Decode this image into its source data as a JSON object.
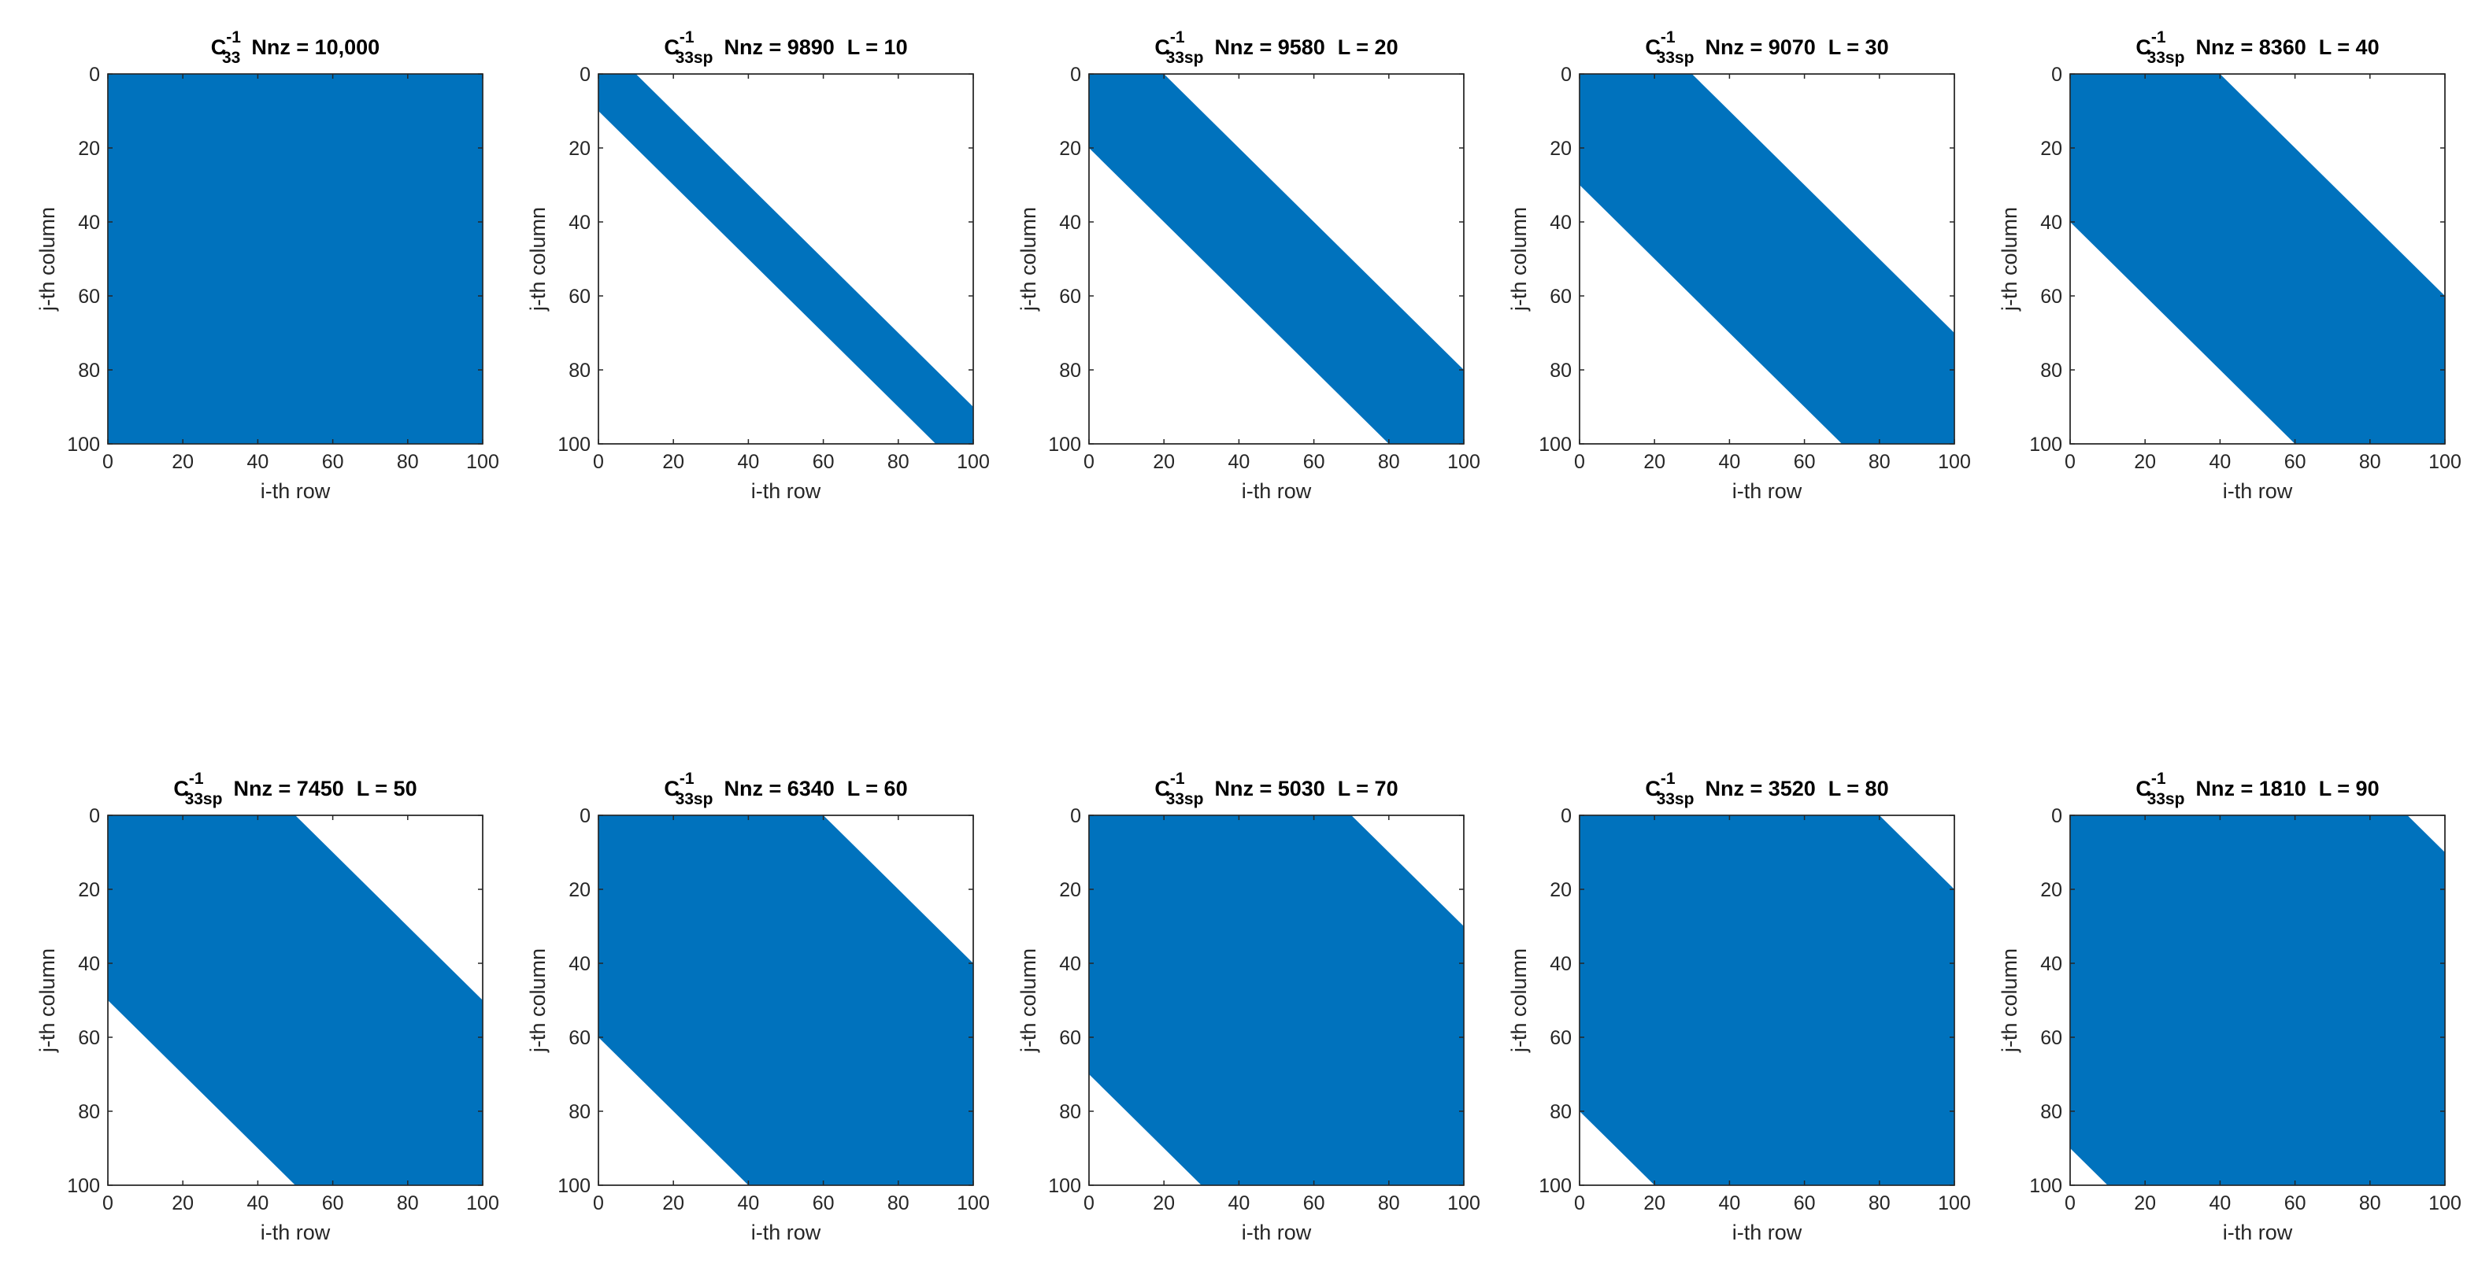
{
  "chart_data": [
    {
      "type": "spy",
      "title_base": "C",
      "title_super": "-1",
      "title_sub": "33",
      "nnz_text": "Nnz = 10,000",
      "l_text": "",
      "bandwidth": null,
      "nnz": 10000,
      "xlabel": "i-th row",
      "ylabel": "j-th column",
      "xlim": [
        0,
        100
      ],
      "ylim": [
        0,
        100
      ],
      "xticks": [
        "0",
        "20",
        "40",
        "60",
        "80",
        "100"
      ],
      "yticks": [
        "0",
        "20",
        "40",
        "60",
        "80",
        "100"
      ],
      "color": "#0072BD"
    },
    {
      "type": "spy",
      "title_base": "C",
      "title_super": "-1",
      "title_sub": "33sp",
      "nnz_text": "Nnz = 9890",
      "l_text": "L = 10",
      "bandwidth": 10,
      "nnz": 9890,
      "xlabel": "i-th row",
      "ylabel": "j-th column",
      "xlim": [
        0,
        100
      ],
      "ylim": [
        0,
        100
      ],
      "xticks": [
        "0",
        "20",
        "40",
        "60",
        "80",
        "100"
      ],
      "yticks": [
        "0",
        "20",
        "40",
        "60",
        "80",
        "100"
      ],
      "color": "#0072BD"
    },
    {
      "type": "spy",
      "title_base": "C",
      "title_super": "-1",
      "title_sub": "33sp",
      "nnz_text": "Nnz = 9580",
      "l_text": "L = 20",
      "bandwidth": 20,
      "nnz": 9580,
      "xlabel": "i-th row",
      "ylabel": "j-th column",
      "xlim": [
        0,
        100
      ],
      "ylim": [
        0,
        100
      ],
      "xticks": [
        "0",
        "20",
        "40",
        "60",
        "80",
        "100"
      ],
      "yticks": [
        "0",
        "20",
        "40",
        "60",
        "80",
        "100"
      ],
      "color": "#0072BD"
    },
    {
      "type": "spy",
      "title_base": "C",
      "title_super": "-1",
      "title_sub": "33sp",
      "nnz_text": "Nnz = 9070",
      "l_text": "L = 30",
      "bandwidth": 30,
      "nnz": 9070,
      "xlabel": "i-th row",
      "ylabel": "j-th column",
      "xlim": [
        0,
        100
      ],
      "ylim": [
        0,
        100
      ],
      "xticks": [
        "0",
        "20",
        "40",
        "60",
        "80",
        "100"
      ],
      "yticks": [
        "0",
        "20",
        "40",
        "60",
        "80",
        "100"
      ],
      "color": "#0072BD"
    },
    {
      "type": "spy",
      "title_base": "C",
      "title_super": "-1",
      "title_sub": "33sp",
      "nnz_text": "Nnz = 8360",
      "l_text": "L = 40",
      "bandwidth": 40,
      "nnz": 8360,
      "xlabel": "i-th row",
      "ylabel": "j-th column",
      "xlim": [
        0,
        100
      ],
      "ylim": [
        0,
        100
      ],
      "xticks": [
        "0",
        "20",
        "40",
        "60",
        "80",
        "100"
      ],
      "yticks": [
        "0",
        "20",
        "40",
        "60",
        "80",
        "100"
      ],
      "color": "#0072BD"
    },
    {
      "type": "spy",
      "title_base": "C",
      "title_super": "-1",
      "title_sub": "33sp",
      "nnz_text": "Nnz = 7450",
      "l_text": "L = 50",
      "bandwidth": 50,
      "nnz": 7450,
      "xlabel": "i-th row",
      "ylabel": "j-th column",
      "xlim": [
        0,
        100
      ],
      "ylim": [
        0,
        100
      ],
      "xticks": [
        "0",
        "20",
        "40",
        "60",
        "80",
        "100"
      ],
      "yticks": [
        "0",
        "20",
        "40",
        "60",
        "80",
        "100"
      ],
      "color": "#0072BD"
    },
    {
      "type": "spy",
      "title_base": "C",
      "title_super": "-1",
      "title_sub": "33sp",
      "nnz_text": "Nnz = 6340",
      "l_text": "L = 60",
      "bandwidth": 60,
      "nnz": 6340,
      "xlabel": "i-th row",
      "ylabel": "j-th column",
      "xlim": [
        0,
        100
      ],
      "ylim": [
        0,
        100
      ],
      "xticks": [
        "0",
        "20",
        "40",
        "60",
        "80",
        "100"
      ],
      "yticks": [
        "0",
        "20",
        "40",
        "60",
        "80",
        "100"
      ],
      "color": "#0072BD"
    },
    {
      "type": "spy",
      "title_base": "C",
      "title_super": "-1",
      "title_sub": "33sp",
      "nnz_text": "Nnz = 5030",
      "l_text": "L = 70",
      "bandwidth": 70,
      "nnz": 5030,
      "xlabel": "i-th row",
      "ylabel": "j-th column",
      "xlim": [
        0,
        100
      ],
      "ylim": [
        0,
        100
      ],
      "xticks": [
        "0",
        "20",
        "40",
        "60",
        "80",
        "100"
      ],
      "yticks": [
        "0",
        "20",
        "40",
        "60",
        "80",
        "100"
      ],
      "color": "#0072BD"
    },
    {
      "type": "spy",
      "title_base": "C",
      "title_super": "-1",
      "title_sub": "33sp",
      "nnz_text": "Nnz = 3520",
      "l_text": "L = 80",
      "bandwidth": 80,
      "nnz": 3520,
      "xlabel": "i-th row",
      "ylabel": "j-th column",
      "xlim": [
        0,
        100
      ],
      "ylim": [
        0,
        100
      ],
      "xticks": [
        "0",
        "20",
        "40",
        "60",
        "80",
        "100"
      ],
      "yticks": [
        "0",
        "20",
        "40",
        "60",
        "80",
        "100"
      ],
      "color": "#0072BD"
    },
    {
      "type": "spy",
      "title_base": "C",
      "title_super": "-1",
      "title_sub": "33sp",
      "nnz_text": "Nnz = 1810",
      "l_text": "L = 90",
      "bandwidth": 90,
      "nnz": 1810,
      "xlabel": "i-th row",
      "ylabel": "j-th column",
      "xlim": [
        0,
        100
      ],
      "ylim": [
        0,
        100
      ],
      "xticks": [
        "0",
        "20",
        "40",
        "60",
        "80",
        "100"
      ],
      "yticks": [
        "0",
        "20",
        "40",
        "60",
        "80",
        "100"
      ],
      "color": "#0072BD"
    }
  ]
}
